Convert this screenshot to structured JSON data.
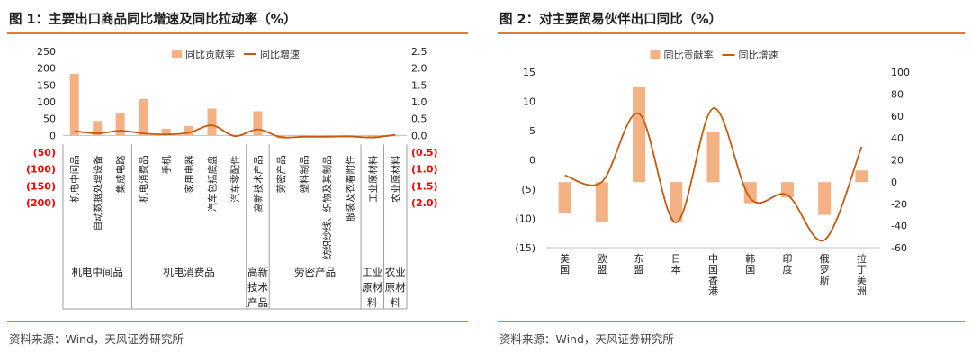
{
  "figure1": {
    "title": "图 1：主要出口商品同比增速及同比拉动率（%）",
    "source": "资料来源：Wind，天风证券研究所",
    "chart_data": {
      "type": "bar",
      "legend": [
        "同比贡献率",
        "同比增速"
      ],
      "legend_position": "top-center",
      "categories": [
        "机电中间品",
        "自动数据处理设备",
        "集成电路",
        "机电消费品",
        "手机",
        "家用电器",
        "汽车包括底盘",
        "汽车零配件",
        "高新技术产品",
        "劳密产品",
        "塑料制品",
        "纺织纱线、织物及其制品",
        "服装及衣着附件",
        "工业原材料",
        "农业原材料"
      ],
      "groups": [
        {
          "label": "机电中间品",
          "lines": [
            "机电中间品"
          ]
        },
        {
          "label": "机电消费品",
          "lines": [
            "机电消费品"
          ]
        },
        {
          "label": "高新技术产品",
          "lines": [
            "高新",
            "技术",
            "产品"
          ]
        },
        {
          "label": "劳密产品",
          "lines": [
            "劳密产品"
          ]
        },
        {
          "label": "工业原材料",
          "lines": [
            "工业",
            "原材",
            "料"
          ]
        },
        {
          "label": "农业原材料",
          "lines": [
            "农业",
            "原材",
            "料"
          ]
        }
      ],
      "group_bounds": [
        0,
        3,
        8,
        9,
        13,
        14,
        15
      ],
      "series": [
        {
          "name": "同比贡献率",
          "type": "bar",
          "axis": "left",
          "color": "#f4b183",
          "values": [
            183,
            43,
            65,
            108,
            20,
            28,
            80,
            2,
            72,
            -8,
            -5,
            -5,
            -6,
            -7,
            -2
          ]
        },
        {
          "name": "同比增速",
          "type": "line",
          "axis": "right",
          "color": "#c55a11",
          "values": [
            0.13,
            0.06,
            0.14,
            0.06,
            0.03,
            0.08,
            0.3,
            -0.02,
            0.18,
            -0.05,
            -0.04,
            -0.04,
            -0.03,
            -0.06,
            0.02
          ]
        }
      ],
      "left_axis": {
        "min": -200,
        "max": 250,
        "step": 50,
        "ticks": [
          "(200)",
          "(150)",
          "(100)",
          "(50)",
          "0",
          "50",
          "100",
          "150",
          "200",
          "250"
        ]
      },
      "right_axis": {
        "min": -2.0,
        "max": 2.5,
        "step": 0.5,
        "ticks": [
          "(2.0)",
          "(1.5)",
          "(1.0)",
          "(0.5)",
          "0.0",
          "0.5",
          "1.0",
          "1.5",
          "2.0",
          "2.5"
        ]
      },
      "negative_tick_color": "#ff0000"
    }
  },
  "figure2": {
    "title": "图 2：对主要贸易伙伴出口同比（%）",
    "source": "资料来源：Wind，天风证券研究所",
    "chart_data": {
      "type": "bar",
      "legend": [
        "同比贡献率",
        "同比增速"
      ],
      "legend_position": "top-center",
      "categories": [
        "美国",
        "欧盟",
        "东盟",
        "日本",
        "中国香港",
        "韩国",
        "印度",
        "俄罗斯",
        "拉丁美洲"
      ],
      "category_lines": [
        [
          "美",
          "国"
        ],
        [
          "欧",
          "盟"
        ],
        [
          "东",
          "盟"
        ],
        [
          "日",
          "本"
        ],
        [
          "中",
          "国",
          "香",
          "港"
        ],
        [
          "韩",
          "国"
        ],
        [
          "印",
          "度"
        ],
        [
          "俄",
          "罗",
          "斯"
        ],
        [
          "拉",
          "丁",
          "美",
          "洲"
        ]
      ],
      "series": [
        {
          "name": "同比贡献率",
          "type": "bar",
          "axis": "left",
          "color": "#f4b183",
          "values": [
            -5.2,
            -6.8,
            16.2,
            -6.7,
            8.6,
            -3.6,
            -2.6,
            -5.6,
            2.0
          ]
        },
        {
          "name": "同比增速",
          "type": "line",
          "axis": "right",
          "color": "#c55a11",
          "values": [
            6,
            0,
            62,
            -37,
            67,
            -15,
            -12,
            -53,
            32
          ]
        }
      ],
      "bar_baseline": -3.8,
      "left_axis": {
        "min": -15,
        "max": 15,
        "step": 5,
        "ticks": [
          "(15)",
          "(10)",
          "(5)",
          "0",
          "5",
          "10",
          "15"
        ]
      },
      "right_axis": {
        "min": -60,
        "max": 100,
        "step": 20,
        "ticks": [
          "-60",
          "-40",
          "-20",
          "0",
          "20",
          "40",
          "60",
          "80",
          "100"
        ]
      }
    }
  }
}
